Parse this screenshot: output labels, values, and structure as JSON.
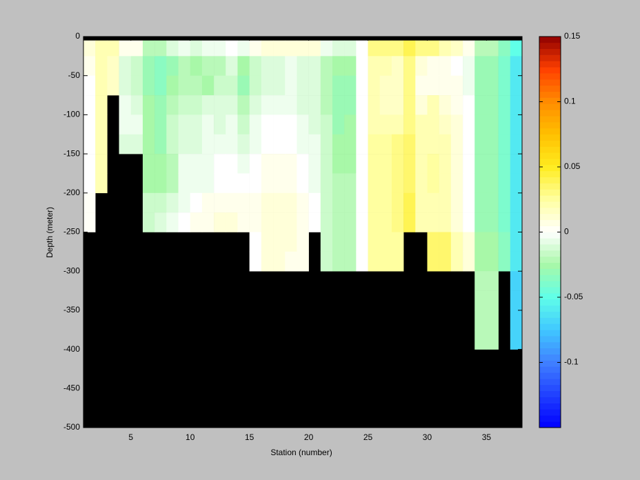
{
  "chart_data": {
    "type": "heatmap",
    "xlabel": "Station (number)",
    "ylabel": "Depth (meter)",
    "xlim": [
      1,
      38
    ],
    "ylim": [
      -500,
      0
    ],
    "xticks": [
      5,
      10,
      15,
      20,
      25,
      30,
      35
    ],
    "yticks": [
      -500,
      -450,
      -400,
      -350,
      -300,
      -250,
      -200,
      -150,
      -100,
      -50,
      0
    ],
    "station_edges": [
      1,
      2,
      3,
      4,
      5,
      6,
      7,
      8,
      9,
      10,
      11,
      12,
      13,
      14,
      15,
      16,
      17,
      18,
      19,
      20,
      21,
      22,
      23,
      24,
      25,
      26,
      27,
      28,
      29,
      30,
      31,
      32,
      33,
      34,
      35,
      36,
      37,
      38
    ],
    "depth_edges": [
      0,
      -5,
      -25,
      -50,
      -75,
      -100,
      -125,
      -150,
      -175,
      -200,
      -225,
      -250,
      -275,
      -300,
      -325,
      -350,
      -375,
      -400,
      -425,
      -450,
      -475,
      -500
    ],
    "missing_color": "#000000",
    "clim": [
      -0.15,
      0.15
    ],
    "cticks": [
      -0.1,
      -0.05,
      0,
      0.05,
      0.1,
      0.15
    ],
    "colormap": [
      "#0000ff",
      "#2040ff",
      "#4080ff",
      "#40c8ff",
      "#60ffe8",
      "#a8f8a8",
      "#ffffff",
      "#ffffa0",
      "#ffec20",
      "#ffc000",
      "#ff8c00",
      "#ff4000",
      "#900000"
    ],
    "columns": [
      [
        null,
        0.01,
        0.005,
        0,
        0,
        0,
        0,
        0,
        0,
        0.002,
        0.002,
        null,
        null,
        null,
        null,
        null,
        null,
        null,
        null,
        null,
        null
      ],
      [
        null,
        0.02,
        0.02,
        0.02,
        0.02,
        0.02,
        0.02,
        0.02,
        0.02,
        null,
        null,
        null,
        null,
        null,
        null,
        null,
        null,
        null,
        null,
        null,
        null
      ],
      [
        null,
        0.02,
        0.015,
        0.015,
        null,
        null,
        null,
        null,
        null,
        null,
        null,
        null,
        null,
        null,
        null,
        null,
        null,
        null,
        null,
        null,
        null
      ],
      [
        null,
        0.005,
        -0.01,
        -0.01,
        -0.005,
        -0.005,
        -0.01,
        null,
        null,
        null,
        null,
        null,
        null,
        null,
        null,
        null,
        null,
        null,
        null,
        null,
        null
      ],
      [
        null,
        0.005,
        -0.015,
        -0.015,
        -0.01,
        -0.005,
        -0.01,
        null,
        null,
        null,
        null,
        null,
        null,
        null,
        null,
        null,
        null,
        null,
        null,
        null,
        null
      ],
      [
        null,
        -0.02,
        -0.03,
        -0.03,
        -0.025,
        -0.025,
        -0.025,
        -0.025,
        -0.025,
        -0.015,
        -0.015,
        null,
        null,
        null,
        null,
        null,
        null,
        null,
        null,
        null,
        null
      ],
      [
        null,
        -0.02,
        -0.035,
        -0.035,
        -0.03,
        -0.03,
        -0.03,
        -0.025,
        -0.025,
        -0.015,
        -0.01,
        null,
        null,
        null,
        null,
        null,
        null,
        null,
        null,
        null,
        null
      ],
      [
        null,
        -0.01,
        -0.03,
        -0.025,
        -0.02,
        -0.015,
        -0.015,
        -0.02,
        -0.02,
        -0.01,
        -0.005,
        null,
        null,
        null,
        null,
        null,
        null,
        null,
        null,
        null,
        null
      ],
      [
        null,
        -0.005,
        -0.02,
        -0.02,
        -0.015,
        -0.01,
        -0.01,
        -0.005,
        -0.005,
        -0.005,
        0,
        null,
        null,
        null,
        null,
        null,
        null,
        null,
        null,
        null,
        null
      ],
      [
        null,
        -0.01,
        -0.025,
        -0.02,
        -0.015,
        -0.01,
        -0.01,
        -0.005,
        -0.005,
        0,
        0.005,
        null,
        null,
        null,
        null,
        null,
        null,
        null,
        null,
        null,
        null
      ],
      [
        null,
        -0.005,
        -0.02,
        -0.025,
        -0.01,
        -0.005,
        -0.005,
        -0.005,
        -0.005,
        0.005,
        0.005,
        null,
        null,
        null,
        null,
        null,
        null,
        null,
        null,
        null,
        null
      ],
      [
        null,
        -0.005,
        -0.02,
        -0.015,
        -0.01,
        -0.01,
        -0.005,
        0,
        0,
        0.005,
        0.01,
        null,
        null,
        null,
        null,
        null,
        null,
        null,
        null,
        null,
        null
      ],
      [
        null,
        0,
        -0.01,
        -0.015,
        -0.01,
        -0.005,
        -0.005,
        0,
        0,
        0.005,
        0.01,
        null,
        null,
        null,
        null,
        null,
        null,
        null,
        null,
        null,
        null
      ],
      [
        null,
        -0.005,
        -0.025,
        -0.03,
        -0.02,
        -0.015,
        -0.01,
        -0.005,
        0,
        0.005,
        0.005,
        null,
        null,
        null,
        null,
        null,
        null,
        null,
        null,
        null,
        null
      ],
      [
        null,
        0.005,
        -0.015,
        -0.015,
        -0.01,
        -0.005,
        -0.005,
        0,
        0,
        0.005,
        0.005,
        0,
        0,
        null,
        null,
        null,
        null,
        null,
        null,
        null,
        null
      ],
      [
        null,
        0.01,
        -0.01,
        -0.01,
        -0.005,
        0,
        0,
        0.005,
        0.005,
        0.01,
        0.01,
        0.01,
        0.01,
        null,
        null,
        null,
        null,
        null,
        null,
        null,
        null
      ],
      [
        null,
        0.01,
        -0.01,
        -0.01,
        -0.005,
        0,
        0,
        0.005,
        0.005,
        0.01,
        0.01,
        0.01,
        0.01,
        null,
        null,
        null,
        null,
        null,
        null,
        null,
        null
      ],
      [
        null,
        0.01,
        -0.005,
        -0.005,
        -0.005,
        0,
        0,
        0.005,
        0.005,
        0.01,
        0.01,
        0.01,
        0.005,
        null,
        null,
        null,
        null,
        null,
        null,
        null,
        null
      ],
      [
        null,
        0.01,
        -0.01,
        -0.01,
        -0.01,
        -0.005,
        -0.005,
        0,
        0,
        0.005,
        0.005,
        0.005,
        0.005,
        null,
        null,
        null,
        null,
        null,
        null,
        null,
        null
      ],
      [
        null,
        0.01,
        -0.01,
        -0.01,
        -0.01,
        -0.01,
        -0.005,
        -0.005,
        -0.005,
        0,
        0,
        null,
        null,
        null,
        null,
        null,
        null,
        null,
        null,
        null,
        null
      ],
      [
        null,
        -0.005,
        -0.02,
        -0.02,
        -0.02,
        -0.015,
        -0.015,
        -0.015,
        -0.015,
        -0.015,
        -0.015,
        -0.015,
        -0.015,
        null,
        null,
        null,
        null,
        null,
        null,
        null,
        null
      ],
      [
        null,
        -0.01,
        -0.025,
        -0.03,
        -0.03,
        -0.03,
        -0.025,
        -0.025,
        -0.02,
        -0.02,
        -0.02,
        -0.02,
        -0.02,
        null,
        null,
        null,
        null,
        null,
        null,
        null,
        null
      ],
      [
        null,
        -0.01,
        -0.025,
        -0.03,
        -0.03,
        -0.025,
        -0.025,
        -0.025,
        -0.02,
        -0.02,
        -0.02,
        -0.02,
        -0.02,
        null,
        null,
        null,
        null,
        null,
        null,
        null,
        null
      ],
      [
        null,
        0,
        0,
        0,
        0,
        0,
        0,
        0,
        0,
        0,
        0,
        0,
        0,
        null,
        null,
        null,
        null,
        null,
        null,
        null,
        null
      ],
      [
        null,
        0.03,
        0.02,
        0.02,
        0.02,
        0.02,
        0.025,
        0.025,
        0.025,
        0.025,
        0.025,
        0.025,
        0.025,
        null,
        null,
        null,
        null,
        null,
        null,
        null,
        null
      ],
      [
        null,
        0.03,
        0.02,
        0.015,
        0.015,
        0.02,
        0.025,
        0.025,
        0.025,
        0.025,
        0.025,
        0.025,
        0.025,
        null,
        null,
        null,
        null,
        null,
        null,
        null,
        null
      ],
      [
        null,
        0.03,
        0.015,
        0.015,
        0.015,
        0.02,
        0.03,
        0.03,
        0.03,
        0.03,
        0.03,
        0.025,
        0.025,
        null,
        null,
        null,
        null,
        null,
        null,
        null,
        null
      ],
      [
        null,
        0.04,
        0.03,
        0.03,
        0.03,
        0.03,
        0.035,
        0.035,
        0.035,
        0.04,
        0.04,
        null,
        null,
        null,
        null,
        null,
        null,
        null,
        null,
        null,
        null
      ],
      [
        null,
        0.03,
        0.01,
        0.005,
        0.01,
        0.02,
        0.02,
        0.02,
        0.02,
        0.02,
        0.02,
        null,
        null,
        null,
        null,
        null,
        null,
        null,
        null,
        null,
        null
      ],
      [
        null,
        0.03,
        0.005,
        0.005,
        0.02,
        0.02,
        0.02,
        0.025,
        0.025,
        0.02,
        0.02,
        0.035,
        0.035,
        null,
        null,
        null,
        null,
        null,
        null,
        null,
        null
      ],
      [
        null,
        0.02,
        0.005,
        0.005,
        0.01,
        0.015,
        0.02,
        0.02,
        0.02,
        0.02,
        0.02,
        0.035,
        0.035,
        null,
        null,
        null,
        null,
        null,
        null,
        null,
        null
      ],
      [
        null,
        0.015,
        0,
        0.005,
        0.005,
        0.01,
        0.01,
        0.01,
        0.01,
        0.01,
        0.01,
        0.02,
        0.02,
        null,
        null,
        null,
        null,
        null,
        null,
        null,
        null
      ],
      [
        null,
        0.005,
        -0.005,
        -0.005,
        0,
        0,
        0,
        0,
        0,
        0,
        0,
        0.01,
        0.01,
        null,
        null,
        null,
        null,
        null,
        null,
        null,
        null
      ],
      [
        null,
        -0.02,
        -0.03,
        -0.03,
        -0.03,
        -0.03,
        -0.03,
        -0.03,
        -0.03,
        -0.03,
        -0.03,
        -0.025,
        -0.025,
        -0.02,
        -0.02,
        -0.02,
        -0.02,
        null,
        null,
        null,
        null
      ],
      [
        null,
        -0.02,
        -0.03,
        -0.03,
        -0.03,
        -0.03,
        -0.03,
        -0.03,
        -0.03,
        -0.03,
        -0.03,
        -0.025,
        -0.025,
        -0.02,
        -0.02,
        -0.02,
        -0.02,
        null,
        null,
        null,
        null
      ],
      [
        null,
        -0.035,
        -0.04,
        -0.04,
        -0.04,
        -0.04,
        -0.04,
        -0.04,
        -0.04,
        -0.04,
        -0.04,
        -0.035,
        -0.035,
        null,
        null,
        null,
        null,
        null,
        null,
        null,
        null
      ],
      [
        null,
        -0.05,
        -0.06,
        -0.06,
        -0.06,
        -0.06,
        -0.06,
        -0.06,
        -0.06,
        -0.06,
        -0.06,
        -0.06,
        -0.06,
        -0.07,
        -0.07,
        -0.07,
        -0.07,
        null,
        null,
        null,
        null
      ]
    ]
  }
}
